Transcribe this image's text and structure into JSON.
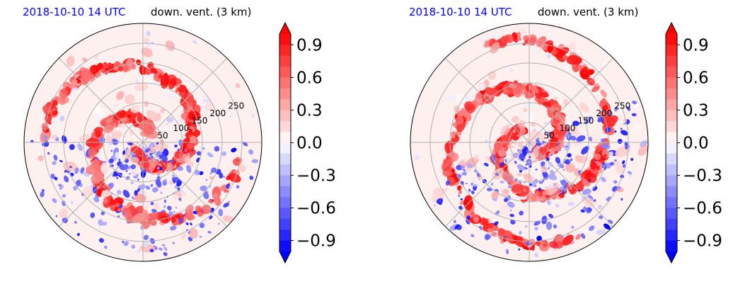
{
  "chart_data": [
    {
      "type": "polar-contour",
      "title_left": "2018-10-10 14 UTC",
      "title_right": "down. vent. (3 km)",
      "radial_ticks": [
        "50",
        "100",
        "150",
        "200",
        "250"
      ],
      "radial_tick_values": [
        50,
        100,
        150,
        200,
        250
      ],
      "rmax": 300,
      "colorbar": {
        "ticks": [
          0.9,
          0.6,
          0.3,
          0.0,
          -0.3,
          -0.6,
          -0.9
        ],
        "tick_labels": [
          "0.9",
          "0.6",
          "0.3",
          "0.0",
          "−0.3",
          "−0.6",
          "−0.9"
        ],
        "vmin": -1.0,
        "vmax": 1.0,
        "colormap": "bwr",
        "extend": "both"
      }
    },
    {
      "type": "polar-contour",
      "title_left": "2018-10-10 14 UTC",
      "title_right": "down. vent. (3 km)",
      "radial_ticks": [
        "50",
        "100",
        "150",
        "200",
        "250"
      ],
      "radial_tick_values": [
        50,
        100,
        150,
        200,
        250
      ],
      "rmax": 300,
      "colorbar": {
        "ticks": [
          0.9,
          0.6,
          0.3,
          0.0,
          -0.3,
          -0.6,
          -0.9
        ],
        "tick_labels": [
          "0.9",
          "0.6",
          "0.3",
          "0.0",
          "−0.3",
          "−0.6",
          "−0.9"
        ],
        "vmin": -1.0,
        "vmax": 1.0,
        "colormap": "bwr",
        "extend": "both"
      }
    }
  ]
}
